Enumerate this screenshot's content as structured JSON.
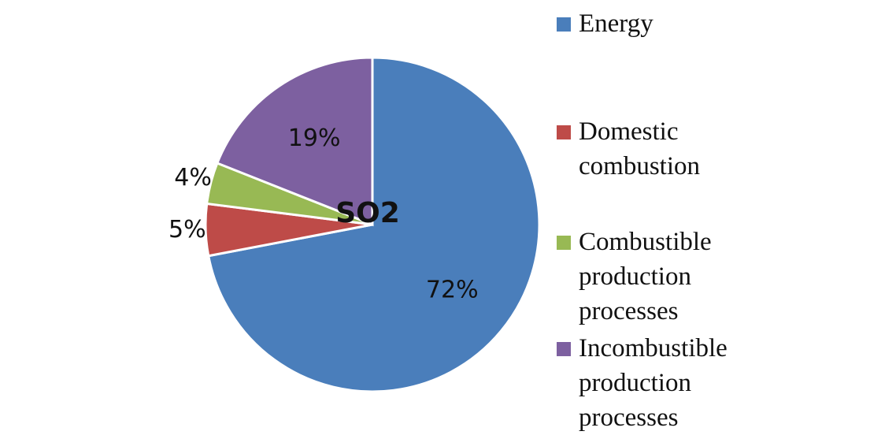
{
  "chart_data": {
    "type": "pie",
    "title": "SO2",
    "categories": [
      "Energy",
      "Domestic combustion",
      "Combustible production processes",
      "Incombustible production processes"
    ],
    "values": [
      72,
      5,
      4,
      19
    ],
    "value_labels": [
      "72%",
      "5%",
      "4%",
      "19%"
    ],
    "colors": [
      "#4a7ebb",
      "#be4b48",
      "#98b954",
      "#7d60a0"
    ],
    "legend": "right"
  }
}
